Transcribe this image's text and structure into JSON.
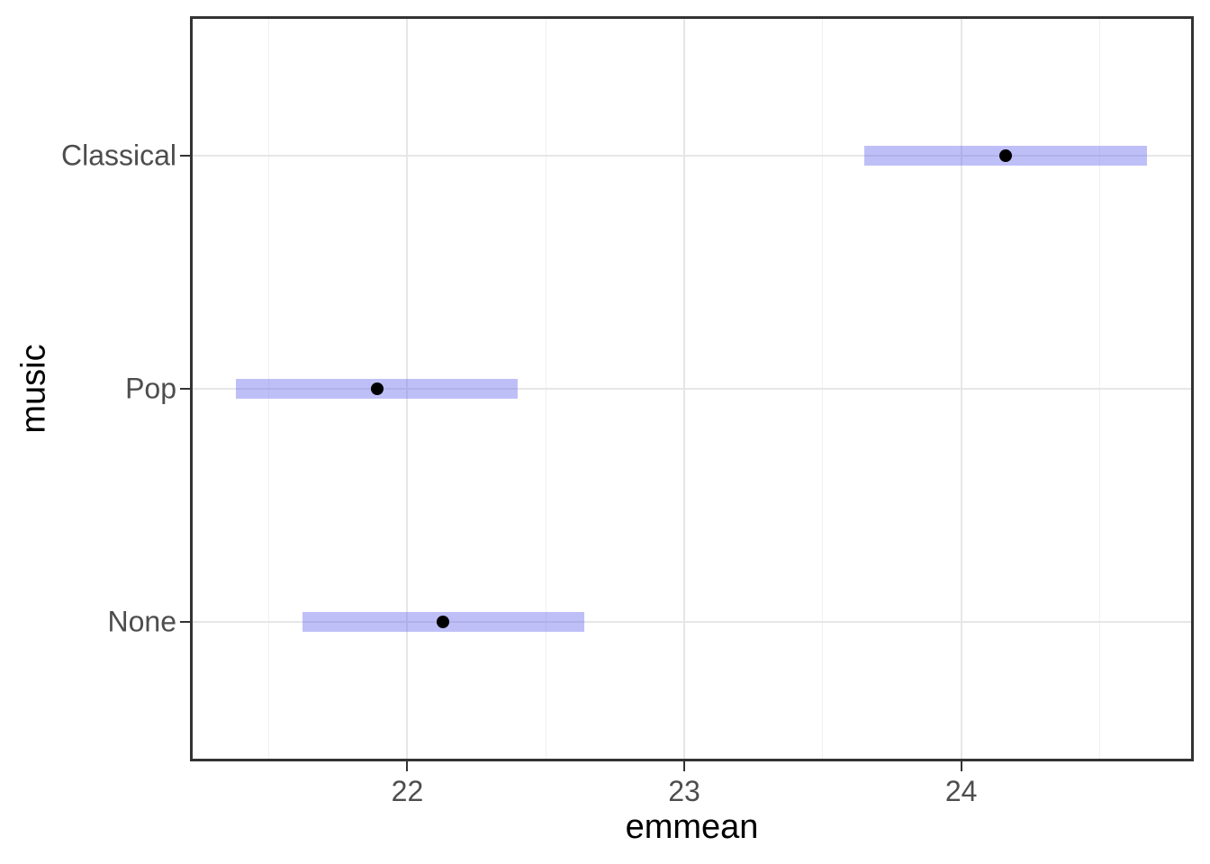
{
  "chart_data": {
    "type": "scatter",
    "subtype": "horizontal-confidence-interval-plot",
    "title": "",
    "xlabel": "emmean",
    "ylabel": "music",
    "xlim": [
      21.215,
      24.84
    ],
    "x_major_ticks": [
      22,
      23,
      24
    ],
    "x_minor_gridlines": [
      21.5,
      22.5,
      23.5,
      24.5
    ],
    "categories_bottom_to_top": [
      "None",
      "Pop",
      "Classical"
    ],
    "y_units_range": [
      0.4,
      3.6
    ],
    "grid": "major horizontal line per category; major and minor vertical lines; no legend",
    "points": [
      {
        "category": "Classical",
        "emmean": 24.16,
        "ci_lower": 23.65,
        "ci_upper": 24.67
      },
      {
        "category": "Pop",
        "emmean": 21.89,
        "ci_lower": 21.38,
        "ci_upper": 22.4
      },
      {
        "category": "None",
        "emmean": 22.13,
        "ci_lower": 21.62,
        "ci_upper": 22.64
      }
    ],
    "colors": {
      "interval_fill": "#7270f0",
      "interval_fill_opacity": 0.45,
      "point": "#000000",
      "grid_major": "#e6e6e6",
      "grid_minor": "#f0f0f0",
      "panel_border": "#333333",
      "tick_mark": "#333333",
      "axis_text": "#4d4d4d",
      "axis_title": "#000000",
      "background": "#ffffff"
    }
  }
}
